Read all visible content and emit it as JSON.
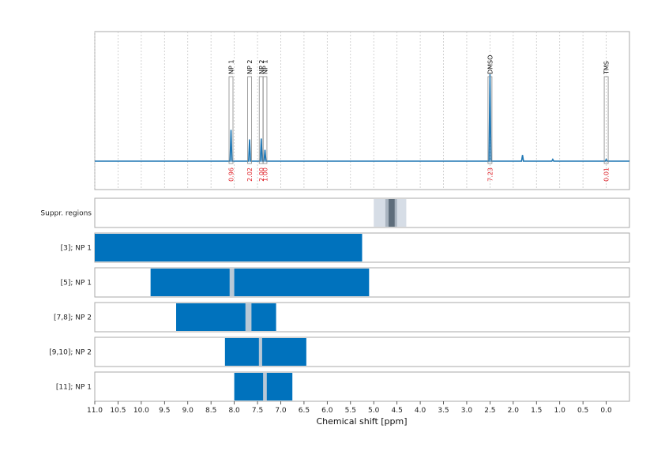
{
  "chart_data": {
    "type": "line",
    "xlabel": "Chemical shift [ppm]",
    "x_ticks": [
      "11.0",
      "10.5",
      "10.0",
      "9.5",
      "9.0",
      "8.5",
      "8.0",
      "7.5",
      "7.0",
      "6.5",
      "6.0",
      "5.5",
      "5.0",
      "4.5",
      "4.0",
      "3.5",
      "3.0",
      "2.5",
      "2.0",
      "1.5",
      "1.0",
      "0.5",
      "0.0"
    ],
    "xlim": [
      11.0,
      -0.5
    ],
    "x_reversed": true,
    "grid": "vertical dotted",
    "spectrum_peaks": [
      {
        "label": "NP 1",
        "shift": 8.07,
        "height": 0.36
      },
      {
        "label": "NP 2",
        "shift": 7.67,
        "height": 0.25
      },
      {
        "label": "NP 2",
        "shift": 7.42,
        "height": 0.26
      },
      {
        "label": "NP 1",
        "shift": 7.34,
        "height": 0.13
      },
      {
        "label": "DMSO",
        "shift": 2.5,
        "height": 1.0
      },
      {
        "label": "TMS",
        "shift": 0.0,
        "height": 0.02
      }
    ],
    "minor_peaks": [
      {
        "shift": 1.8,
        "height": 0.07
      },
      {
        "shift": 1.15,
        "height": 0.02
      }
    ],
    "integrals": [
      {
        "label": "NP 1",
        "shift": 8.07,
        "value": "0.96"
      },
      {
        "label": "NP 2",
        "shift": 7.67,
        "value": "2.02"
      },
      {
        "label": "NP 2",
        "shift": 7.42,
        "value": "2.00"
      },
      {
        "label": "NP 1",
        "shift": 7.34,
        "value": "1.00"
      },
      {
        "label": "DMSO",
        "shift": 2.5,
        "value": "7.23"
      },
      {
        "label": "TMS",
        "shift": 0.0,
        "value": "0.01"
      }
    ],
    "suppr_regions": {
      "label": "Suppr. regions",
      "outer": [
        5.0,
        4.3
      ],
      "inner": [
        4.75,
        4.5
      ],
      "core": [
        4.68,
        4.55
      ]
    },
    "rows": [
      {
        "label": "[3]; NP 1",
        "range": [
          11.0,
          5.25
        ],
        "gaps": []
      },
      {
        "label": "[5]; NP 1",
        "range": [
          9.8,
          5.1
        ],
        "gaps": [
          [
            8.1,
            8.0
          ]
        ]
      },
      {
        "label": "[7,8]; NP 2",
        "range": [
          9.25,
          7.1
        ],
        "gaps": [
          [
            7.76,
            7.63
          ]
        ]
      },
      {
        "label": "[9,10]; NP 2",
        "range": [
          8.2,
          6.45
        ],
        "gaps": [
          [
            7.47,
            7.4
          ]
        ]
      },
      {
        "label": "[11]; NP 1",
        "range": [
          8.0,
          6.75
        ],
        "gaps": [
          [
            7.38,
            7.3
          ]
        ]
      }
    ],
    "colors": {
      "spectrum": "#1f77b4",
      "bars": "#0072bd",
      "gap": "#b8c8d6",
      "suppr_outer": "#d6dde6",
      "suppr_inner": "#a9b4c0",
      "suppr_core": "#5e6d7b",
      "integral_text": "#e0242b"
    }
  }
}
